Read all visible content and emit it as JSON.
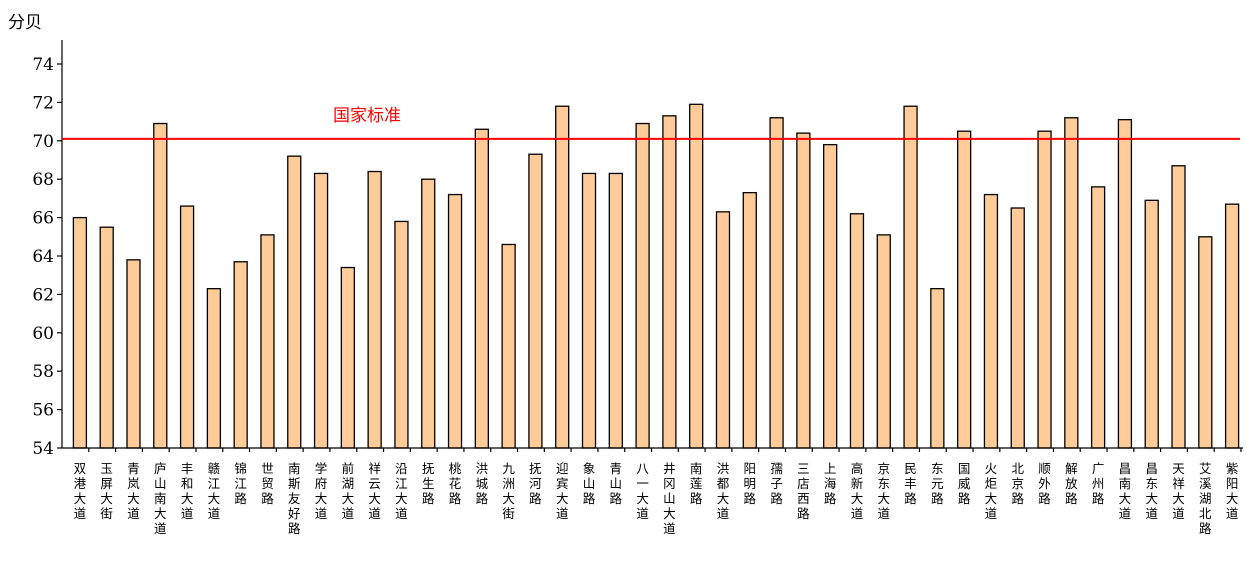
{
  "chart_data": {
    "type": "bar",
    "ylabel": "分贝",
    "ylim": [
      54,
      75
    ],
    "yticks": [
      54,
      56,
      58,
      60,
      62,
      64,
      66,
      68,
      70,
      72,
      74
    ],
    "grid": false,
    "legend": "none",
    "bar_fill": "#FFCC99",
    "bar_stroke": "#000000",
    "reference_line": {
      "value": 70.1,
      "label": "国家标准",
      "color": "#FF0000"
    },
    "categories": [
      "双港大道",
      "玉屏大街",
      "青岚大道",
      "庐山南大道",
      "丰和大道",
      "赣江大道",
      "锦江路",
      "世贸路",
      "南斯友好路",
      "学府大道",
      "前湖大道",
      "祥云大道",
      "沿江大道",
      "抚生路",
      "桃花路",
      "洪城路",
      "九洲大街",
      "抚河路",
      "迎宾大道",
      "象山路",
      "青山路",
      "八一大道",
      "井冈山大道",
      "南莲路",
      "洪都大道",
      "阳明路",
      "孺子路",
      "三店西路",
      "上海路",
      "高新大道",
      "京东大道",
      "民丰路",
      "东元路",
      "国威路",
      "火炬大道",
      "北京路",
      "顺外路",
      "解放路",
      "广州路",
      "昌南大道",
      "昌东大道",
      "天祥大道",
      "艾溪湖北路",
      "紫阳大道"
    ],
    "values": [
      66.0,
      65.5,
      63.8,
      70.9,
      66.6,
      62.3,
      63.7,
      65.1,
      69.2,
      68.3,
      63.4,
      68.4,
      65.8,
      68.0,
      67.2,
      70.6,
      64.6,
      69.3,
      71.8,
      68.3,
      68.3,
      70.9,
      71.3,
      71.9,
      66.3,
      67.3,
      71.2,
      70.4,
      69.8,
      66.2,
      65.1,
      71.8,
      62.3,
      70.5,
      67.2,
      66.5,
      70.5,
      71.2,
      67.6,
      71.1,
      66.9,
      68.7,
      65.0,
      66.7
    ]
  }
}
